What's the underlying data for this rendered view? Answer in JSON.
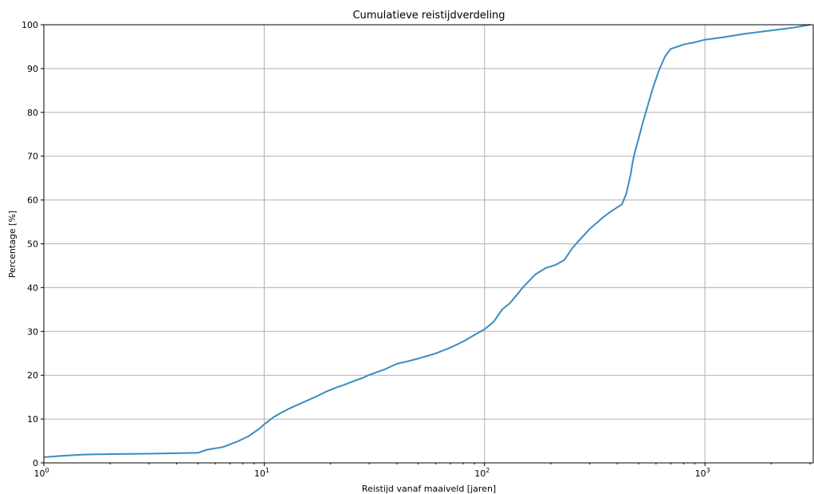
{
  "chart_data": {
    "type": "line",
    "title": "Cumulatieve reistijdverdeling",
    "xlabel": "Reistijd vanaf maaiveld [jaren]",
    "ylabel": "Percentage [%]",
    "xscale": "log",
    "xlim": [
      1,
      3100
    ],
    "ylim": [
      0,
      100
    ],
    "grid": true,
    "x_ticks": [
      {
        "value": 1,
        "base": "10",
        "exp": "0"
      },
      {
        "value": 10,
        "base": "10",
        "exp": "1"
      },
      {
        "value": 100,
        "base": "10",
        "exp": "2"
      },
      {
        "value": 1000,
        "base": "10",
        "exp": "3"
      }
    ],
    "y_ticks": [
      0,
      10,
      20,
      30,
      40,
      50,
      60,
      70,
      80,
      90,
      100
    ],
    "line_color": "#3a8cc0",
    "series": [
      {
        "x": [
          1,
          1.2,
          1.5,
          2,
          3,
          4,
          5,
          5.5,
          6.5,
          7.5,
          8.5,
          9.5,
          10,
          11,
          12,
          13,
          15,
          17,
          19,
          21,
          23,
          25,
          28,
          30,
          35,
          40,
          45,
          50,
          55,
          60,
          70,
          80,
          90,
          100,
          110,
          120,
          130,
          140,
          150,
          170,
          190,
          210,
          230,
          250,
          270,
          300,
          330,
          350,
          380,
          420,
          440,
          460,
          470,
          480,
          500,
          520,
          550,
          580,
          620,
          660,
          700,
          750,
          800,
          900,
          1000,
          1200,
          1500,
          2000,
          2500,
          3000
        ],
        "y": [
          1.3,
          1.6,
          1.9,
          2.0,
          2.1,
          2.2,
          2.3,
          3.0,
          3.6,
          4.8,
          6.1,
          7.8,
          8.8,
          10.4,
          11.5,
          12.4,
          13.8,
          15.0,
          16.2,
          17.1,
          17.8,
          18.5,
          19.4,
          20.1,
          21.3,
          22.6,
          23.2,
          23.8,
          24.4,
          25.0,
          26.3,
          27.7,
          29.2,
          30.5,
          32.2,
          35.0,
          36.4,
          38.3,
          40.2,
          43.0,
          44.5,
          45.2,
          46.3,
          49.0,
          50.9,
          53.4,
          55.2,
          56.3,
          57.6,
          59.0,
          61.5,
          65.8,
          68.7,
          70.8,
          74.0,
          77.3,
          81.5,
          85.5,
          89.7,
          92.8,
          94.5,
          95.0,
          95.5,
          96.0,
          96.6,
          97.1,
          97.9,
          98.7,
          99.3,
          100.0
        ]
      }
    ]
  }
}
